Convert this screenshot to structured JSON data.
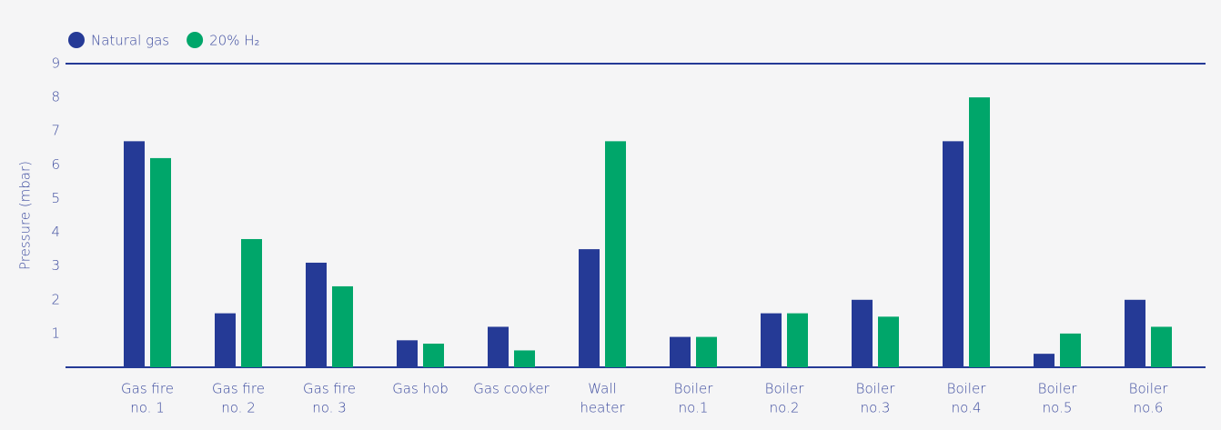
{
  "chart_data": {
    "type": "bar",
    "y_label": "Pressure (mbar)",
    "categories": [
      [
        "Gas fire",
        "no. 1"
      ],
      [
        "Gas fire",
        "no. 2"
      ],
      [
        "Gas fire",
        "no. 3"
      ],
      [
        "Gas hob"
      ],
      [
        "Gas cooker"
      ],
      [
        "Wall",
        "heater"
      ],
      [
        "Boiler",
        "no.1"
      ],
      [
        "Boiler",
        "no.2"
      ],
      [
        "Boiler",
        "no.3"
      ],
      [
        "Boiler",
        "no.4"
      ],
      [
        "Boiler",
        "no.5"
      ],
      [
        "Boiler",
        "no.6"
      ]
    ],
    "series": [
      {
        "name": "Natural gas",
        "color": "#253a96",
        "values": [
          6.7,
          1.6,
          3.1,
          0.8,
          1.2,
          3.5,
          0.9,
          1.6,
          2.0,
          6.7,
          0.4,
          2.0
        ]
      },
      {
        "name": "20% H₂",
        "color": "#00a66a",
        "values": [
          6.2,
          3.8,
          2.4,
          0.7,
          0.5,
          6.7,
          0.9,
          1.6,
          1.5,
          8.0,
          1.0,
          1.2
        ]
      }
    ],
    "ylim": [
      0,
      9
    ],
    "yticks": [
      1,
      2,
      3,
      4,
      5,
      6,
      7,
      8,
      9
    ],
    "legend": "top-left"
  }
}
